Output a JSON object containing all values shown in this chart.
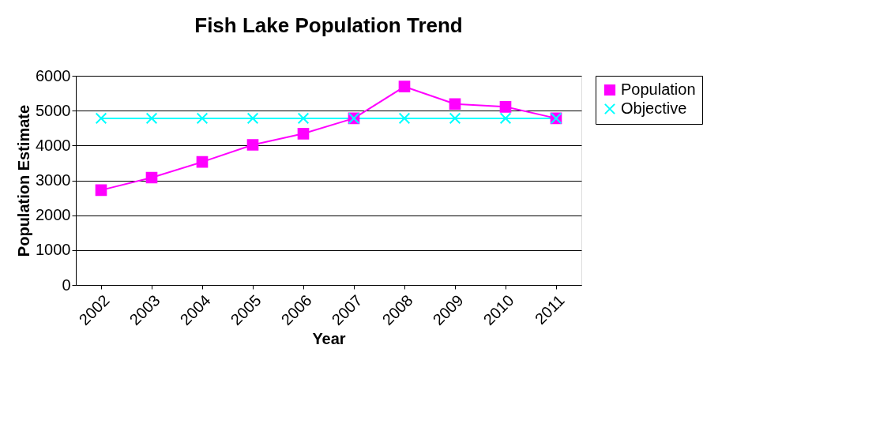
{
  "chart_data": {
    "type": "line",
    "title": "Fish Lake Population Trend",
    "xlabel": "Year",
    "ylabel": "Population Estimate",
    "categories": [
      "2002",
      "2003",
      "2004",
      "2005",
      "2006",
      "2007",
      "2008",
      "2009",
      "2010",
      "2011"
    ],
    "series": [
      {
        "name": "Population",
        "color": "#ff00ff",
        "marker": "square",
        "values": [
          2720,
          3080,
          3530,
          4020,
          4340,
          4780,
          5690,
          5190,
          5110,
          4780
        ]
      },
      {
        "name": "Objective",
        "color": "#00ffff",
        "marker": "cross",
        "values": [
          4780,
          4780,
          4780,
          4780,
          4780,
          4780,
          4780,
          4780,
          4780,
          4780
        ]
      }
    ],
    "ylim": [
      0,
      6000
    ],
    "yticks": [
      0,
      1000,
      2000,
      3000,
      4000,
      5000,
      6000
    ],
    "grid": "y",
    "legend": "right",
    "line_style": "solid"
  }
}
